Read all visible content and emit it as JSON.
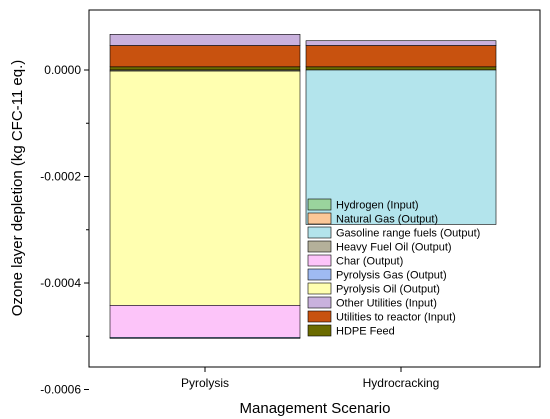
{
  "chart_data": {
    "type": "bar",
    "stacked": true,
    "title": "",
    "xlabel": "Management Scenario",
    "ylabel": "Ozone layer depletion (kg CFC-11 eq.)",
    "ylim": [
      -0.00072,
      9e-05
    ],
    "yticks": [
      {
        "value": 0.0,
        "label": "0.0000"
      },
      {
        "value": -0.0002,
        "label": "-0.0002"
      },
      {
        "value": -0.0004,
        "label": "-0.0004"
      },
      {
        "value": -0.0006,
        "label": "-0.0006"
      }
    ],
    "categories": [
      "Pyrolysis",
      "Hydrocracking"
    ],
    "grid": false,
    "legend_position": "bottom-right",
    "legend_order": [
      "Hydrogen (Input)",
      "Natural Gas (Output)",
      "Gasoline range fuels (Output)",
      "Heavy Fuel Oil (Output)",
      "Char (Output)",
      "Pyrolysis Gas (Output)",
      "Pyrolysis Oil (Output)",
      "Other Utilities (Input)",
      "Utilities to reactor (Input)",
      "HDPE Feed"
    ],
    "series": [
      {
        "name": "HDPE Feed",
        "color": "#6b6b00",
        "values": [
          6e-06,
          6e-06
        ]
      },
      {
        "name": "Utilities to reactor (Input)",
        "color": "#c8520f",
        "values": [
          4e-05,
          4e-05
        ]
      },
      {
        "name": "Other Utilities (Input)",
        "color": "#c9b1dd",
        "values": [
          2.1e-05,
          9e-06
        ]
      },
      {
        "name": "Hydrogen (Input)",
        "color": "#9ad49d",
        "values": [
          0.0,
          0.0
        ]
      },
      {
        "name": "Heavy Fuel Oil (Output)",
        "color": "#b4b09a",
        "values": [
          -2e-06,
          0.0
        ]
      },
      {
        "name": "Pyrolysis Oil (Output)",
        "color": "#ffffb0",
        "values": [
          -0.00044,
          0.0
        ]
      },
      {
        "name": "Char (Output)",
        "color": "#fcc4f9",
        "values": [
          -6e-05,
          0.0
        ]
      },
      {
        "name": "Pyrolysis Gas (Output)",
        "color": "#9fbaf2",
        "values": [
          -2e-06,
          0.0
        ]
      },
      {
        "name": "Natural Gas (Output)",
        "color": "#fbc797",
        "values": [
          0.0,
          0.0
        ]
      },
      {
        "name": "Gasoline range fuels (Output)",
        "color": "#b3e4ec",
        "values": [
          0.0,
          -0.00029
        ]
      }
    ]
  }
}
